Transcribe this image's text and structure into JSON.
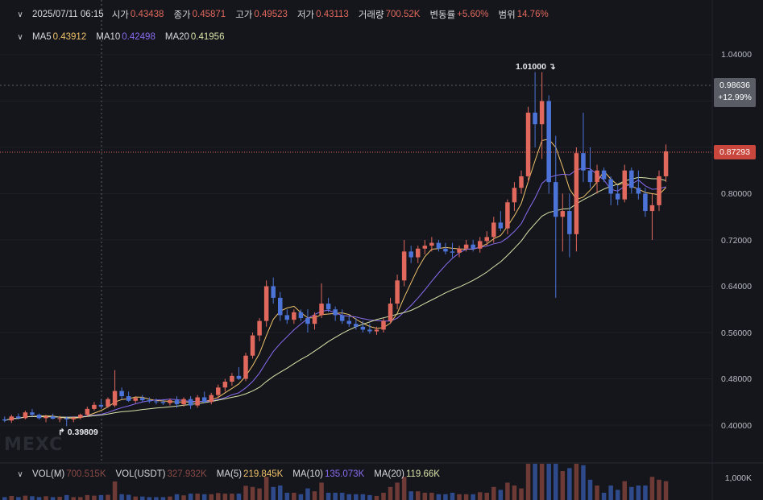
{
  "header": {
    "datetime": "2025/07/11 06:15",
    "open_label": "시가",
    "open": "0.43438",
    "close_label": "종가",
    "close": "0.45871",
    "high_label": "고가",
    "high": "0.49523",
    "low_label": "저가",
    "low": "0.43113",
    "volume_label": "거래량",
    "volume": "700.52K",
    "change_label": "변동률",
    "change": "+5.60%",
    "range_label": "범위",
    "range": "14.76%"
  },
  "ma": {
    "ma5_label": "MA5",
    "ma5": "0.43912",
    "ma10_label": "MA10",
    "ma10": "0.42498",
    "ma20_label": "MA20",
    "ma20": "0.41956"
  },
  "volume_panel": {
    "vol_label": "VOL(M)",
    "vol": "700.515K",
    "volusdt_label": "VOL(USDT)",
    "volusdt": "327.932K",
    "ma5_label": "MA(5)",
    "ma5": "219.845K",
    "ma10_label": "MA(10)",
    "ma10": "135.073K",
    "ma20_label": "MA(20)",
    "ma20": "119.66K",
    "axis_label": "1,000K"
  },
  "price_axis": [
    "1.04000",
    "0.96000",
    "0.88000",
    "0.80000",
    "0.72000",
    "0.64000",
    "0.56000",
    "0.48000",
    "0.40000"
  ],
  "crosshair_price": "0.98636",
  "crosshair_change": "+12.99%",
  "last_price": "0.87293",
  "high_marker": "1.01000",
  "low_marker": "0.39809",
  "watermark": "MEXC",
  "colors": {
    "up": "#e0685c",
    "down": "#4c74d8",
    "ma5": "#f0c36b",
    "ma10": "#8a6cf0",
    "ma20": "#d8e3a8",
    "bg": "#15161c"
  },
  "chart_data": {
    "type": "candlestick",
    "ylim": [
      0.37,
      1.08
    ],
    "candles": [
      {
        "o": 0.41,
        "h": 0.415,
        "l": 0.405,
        "c": 0.408
      },
      {
        "o": 0.408,
        "h": 0.418,
        "l": 0.404,
        "c": 0.415
      },
      {
        "o": 0.415,
        "h": 0.42,
        "l": 0.41,
        "c": 0.412
      },
      {
        "o": 0.412,
        "h": 0.425,
        "l": 0.41,
        "c": 0.422
      },
      {
        "o": 0.422,
        "h": 0.428,
        "l": 0.415,
        "c": 0.418
      },
      {
        "o": 0.418,
        "h": 0.42,
        "l": 0.41,
        "c": 0.412
      },
      {
        "o": 0.412,
        "h": 0.418,
        "l": 0.405,
        "c": 0.415
      },
      {
        "o": 0.415,
        "h": 0.42,
        "l": 0.41,
        "c": 0.411
      },
      {
        "o": 0.411,
        "h": 0.416,
        "l": 0.405,
        "c": 0.412
      },
      {
        "o": 0.412,
        "h": 0.415,
        "l": 0.398,
        "c": 0.41
      },
      {
        "o": 0.41,
        "h": 0.415,
        "l": 0.405,
        "c": 0.413
      },
      {
        "o": 0.413,
        "h": 0.42,
        "l": 0.41,
        "c": 0.418
      },
      {
        "o": 0.418,
        "h": 0.432,
        "l": 0.415,
        "c": 0.428
      },
      {
        "o": 0.428,
        "h": 0.44,
        "l": 0.425,
        "c": 0.435
      },
      {
        "o": 0.435,
        "h": 0.445,
        "l": 0.428,
        "c": 0.432
      },
      {
        "o": 0.432,
        "h": 0.448,
        "l": 0.43,
        "c": 0.445
      },
      {
        "o": 0.434,
        "h": 0.495,
        "l": 0.431,
        "c": 0.459
      },
      {
        "o": 0.459,
        "h": 0.465,
        "l": 0.445,
        "c": 0.45
      },
      {
        "o": 0.45,
        "h": 0.458,
        "l": 0.44,
        "c": 0.442
      },
      {
        "o": 0.442,
        "h": 0.45,
        "l": 0.438,
        "c": 0.447
      },
      {
        "o": 0.447,
        "h": 0.452,
        "l": 0.44,
        "c": 0.443
      },
      {
        "o": 0.443,
        "h": 0.448,
        "l": 0.438,
        "c": 0.441
      },
      {
        "o": 0.441,
        "h": 0.446,
        "l": 0.436,
        "c": 0.44
      },
      {
        "o": 0.44,
        "h": 0.445,
        "l": 0.435,
        "c": 0.438
      },
      {
        "o": 0.438,
        "h": 0.446,
        "l": 0.434,
        "c": 0.443
      },
      {
        "o": 0.443,
        "h": 0.45,
        "l": 0.43,
        "c": 0.436
      },
      {
        "o": 0.436,
        "h": 0.448,
        "l": 0.432,
        "c": 0.445
      },
      {
        "o": 0.445,
        "h": 0.45,
        "l": 0.428,
        "c": 0.434
      },
      {
        "o": 0.434,
        "h": 0.452,
        "l": 0.43,
        "c": 0.448
      },
      {
        "o": 0.448,
        "h": 0.458,
        "l": 0.438,
        "c": 0.44
      },
      {
        "o": 0.44,
        "h": 0.456,
        "l": 0.436,
        "c": 0.452
      },
      {
        "o": 0.452,
        "h": 0.47,
        "l": 0.446,
        "c": 0.465
      },
      {
        "o": 0.465,
        "h": 0.48,
        "l": 0.458,
        "c": 0.475
      },
      {
        "o": 0.475,
        "h": 0.49,
        "l": 0.468,
        "c": 0.485
      },
      {
        "o": 0.485,
        "h": 0.5,
        "l": 0.478,
        "c": 0.48
      },
      {
        "o": 0.48,
        "h": 0.525,
        "l": 0.476,
        "c": 0.52
      },
      {
        "o": 0.52,
        "h": 0.56,
        "l": 0.515,
        "c": 0.555
      },
      {
        "o": 0.555,
        "h": 0.585,
        "l": 0.545,
        "c": 0.58
      },
      {
        "o": 0.58,
        "h": 0.65,
        "l": 0.57,
        "c": 0.64
      },
      {
        "o": 0.64,
        "h": 0.655,
        "l": 0.61,
        "c": 0.62
      },
      {
        "o": 0.62,
        "h": 0.63,
        "l": 0.58,
        "c": 0.59
      },
      {
        "o": 0.59,
        "h": 0.6,
        "l": 0.575,
        "c": 0.582
      },
      {
        "o": 0.582,
        "h": 0.6,
        "l": 0.575,
        "c": 0.595
      },
      {
        "o": 0.595,
        "h": 0.6,
        "l": 0.58,
        "c": 0.585
      },
      {
        "o": 0.585,
        "h": 0.6,
        "l": 0.56,
        "c": 0.575
      },
      {
        "o": 0.575,
        "h": 0.595,
        "l": 0.565,
        "c": 0.59
      },
      {
        "o": 0.59,
        "h": 0.645,
        "l": 0.585,
        "c": 0.61
      },
      {
        "o": 0.61,
        "h": 0.62,
        "l": 0.595,
        "c": 0.6
      },
      {
        "o": 0.6,
        "h": 0.605,
        "l": 0.58,
        "c": 0.59
      },
      {
        "o": 0.59,
        "h": 0.6,
        "l": 0.575,
        "c": 0.58
      },
      {
        "o": 0.58,
        "h": 0.59,
        "l": 0.57,
        "c": 0.575
      },
      {
        "o": 0.575,
        "h": 0.585,
        "l": 0.565,
        "c": 0.57
      },
      {
        "o": 0.57,
        "h": 0.58,
        "l": 0.56,
        "c": 0.565
      },
      {
        "o": 0.565,
        "h": 0.575,
        "l": 0.558,
        "c": 0.562
      },
      {
        "o": 0.562,
        "h": 0.57,
        "l": 0.556,
        "c": 0.565
      },
      {
        "o": 0.565,
        "h": 0.585,
        "l": 0.56,
        "c": 0.58
      },
      {
        "o": 0.58,
        "h": 0.62,
        "l": 0.575,
        "c": 0.61
      },
      {
        "o": 0.61,
        "h": 0.66,
        "l": 0.6,
        "c": 0.65
      },
      {
        "o": 0.65,
        "h": 0.72,
        "l": 0.64,
        "c": 0.7
      },
      {
        "o": 0.7,
        "h": 0.71,
        "l": 0.68,
        "c": 0.69
      },
      {
        "o": 0.69,
        "h": 0.71,
        "l": 0.68,
        "c": 0.705
      },
      {
        "o": 0.705,
        "h": 0.72,
        "l": 0.695,
        "c": 0.71
      },
      {
        "o": 0.71,
        "h": 0.725,
        "l": 0.7,
        "c": 0.715
      },
      {
        "o": 0.715,
        "h": 0.72,
        "l": 0.7,
        "c": 0.705
      },
      {
        "o": 0.705,
        "h": 0.715,
        "l": 0.695,
        "c": 0.7
      },
      {
        "o": 0.7,
        "h": 0.715,
        "l": 0.69,
        "c": 0.698
      },
      {
        "o": 0.698,
        "h": 0.71,
        "l": 0.69,
        "c": 0.705
      },
      {
        "o": 0.705,
        "h": 0.72,
        "l": 0.7,
        "c": 0.712
      },
      {
        "o": 0.712,
        "h": 0.72,
        "l": 0.7,
        "c": 0.705
      },
      {
        "o": 0.705,
        "h": 0.725,
        "l": 0.698,
        "c": 0.718
      },
      {
        "o": 0.718,
        "h": 0.735,
        "l": 0.71,
        "c": 0.725
      },
      {
        "o": 0.725,
        "h": 0.76,
        "l": 0.715,
        "c": 0.75
      },
      {
        "o": 0.75,
        "h": 0.77,
        "l": 0.735,
        "c": 0.74
      },
      {
        "o": 0.74,
        "h": 0.79,
        "l": 0.73,
        "c": 0.785
      },
      {
        "o": 0.785,
        "h": 0.82,
        "l": 0.77,
        "c": 0.81
      },
      {
        "o": 0.81,
        "h": 0.84,
        "l": 0.8,
        "c": 0.83
      },
      {
        "o": 0.83,
        "h": 0.95,
        "l": 0.82,
        "c": 0.94
      },
      {
        "o": 0.94,
        "h": 1.01,
        "l": 0.88,
        "c": 0.92
      },
      {
        "o": 0.92,
        "h": 1.01,
        "l": 0.86,
        "c": 0.96
      },
      {
        "o": 0.96,
        "h": 0.97,
        "l": 0.8,
        "c": 0.82
      },
      {
        "o": 0.82,
        "h": 0.9,
        "l": 0.62,
        "c": 0.76
      },
      {
        "o": 0.76,
        "h": 0.8,
        "l": 0.7,
        "c": 0.77
      },
      {
        "o": 0.77,
        "h": 0.8,
        "l": 0.69,
        "c": 0.73
      },
      {
        "o": 0.73,
        "h": 0.88,
        "l": 0.7,
        "c": 0.87
      },
      {
        "o": 0.87,
        "h": 0.94,
        "l": 0.82,
        "c": 0.84
      },
      {
        "o": 0.84,
        "h": 0.88,
        "l": 0.81,
        "c": 0.82
      },
      {
        "o": 0.82,
        "h": 0.85,
        "l": 0.8,
        "c": 0.84
      },
      {
        "o": 0.84,
        "h": 0.845,
        "l": 0.82,
        "c": 0.825
      },
      {
        "o": 0.825,
        "h": 0.83,
        "l": 0.78,
        "c": 0.8
      },
      {
        "o": 0.8,
        "h": 0.815,
        "l": 0.78,
        "c": 0.79
      },
      {
        "o": 0.79,
        "h": 0.85,
        "l": 0.785,
        "c": 0.84
      },
      {
        "o": 0.84,
        "h": 0.845,
        "l": 0.8,
        "c": 0.81
      },
      {
        "o": 0.81,
        "h": 0.84,
        "l": 0.79,
        "c": 0.8
      },
      {
        "o": 0.8,
        "h": 0.81,
        "l": 0.76,
        "c": 0.77
      },
      {
        "o": 0.77,
        "h": 0.8,
        "l": 0.72,
        "c": 0.78
      },
      {
        "o": 0.78,
        "h": 0.84,
        "l": 0.77,
        "c": 0.83
      },
      {
        "o": 0.83,
        "h": 0.885,
        "l": 0.82,
        "c": 0.873
      }
    ],
    "volume_ylim": [
      0,
      1000
    ]
  }
}
